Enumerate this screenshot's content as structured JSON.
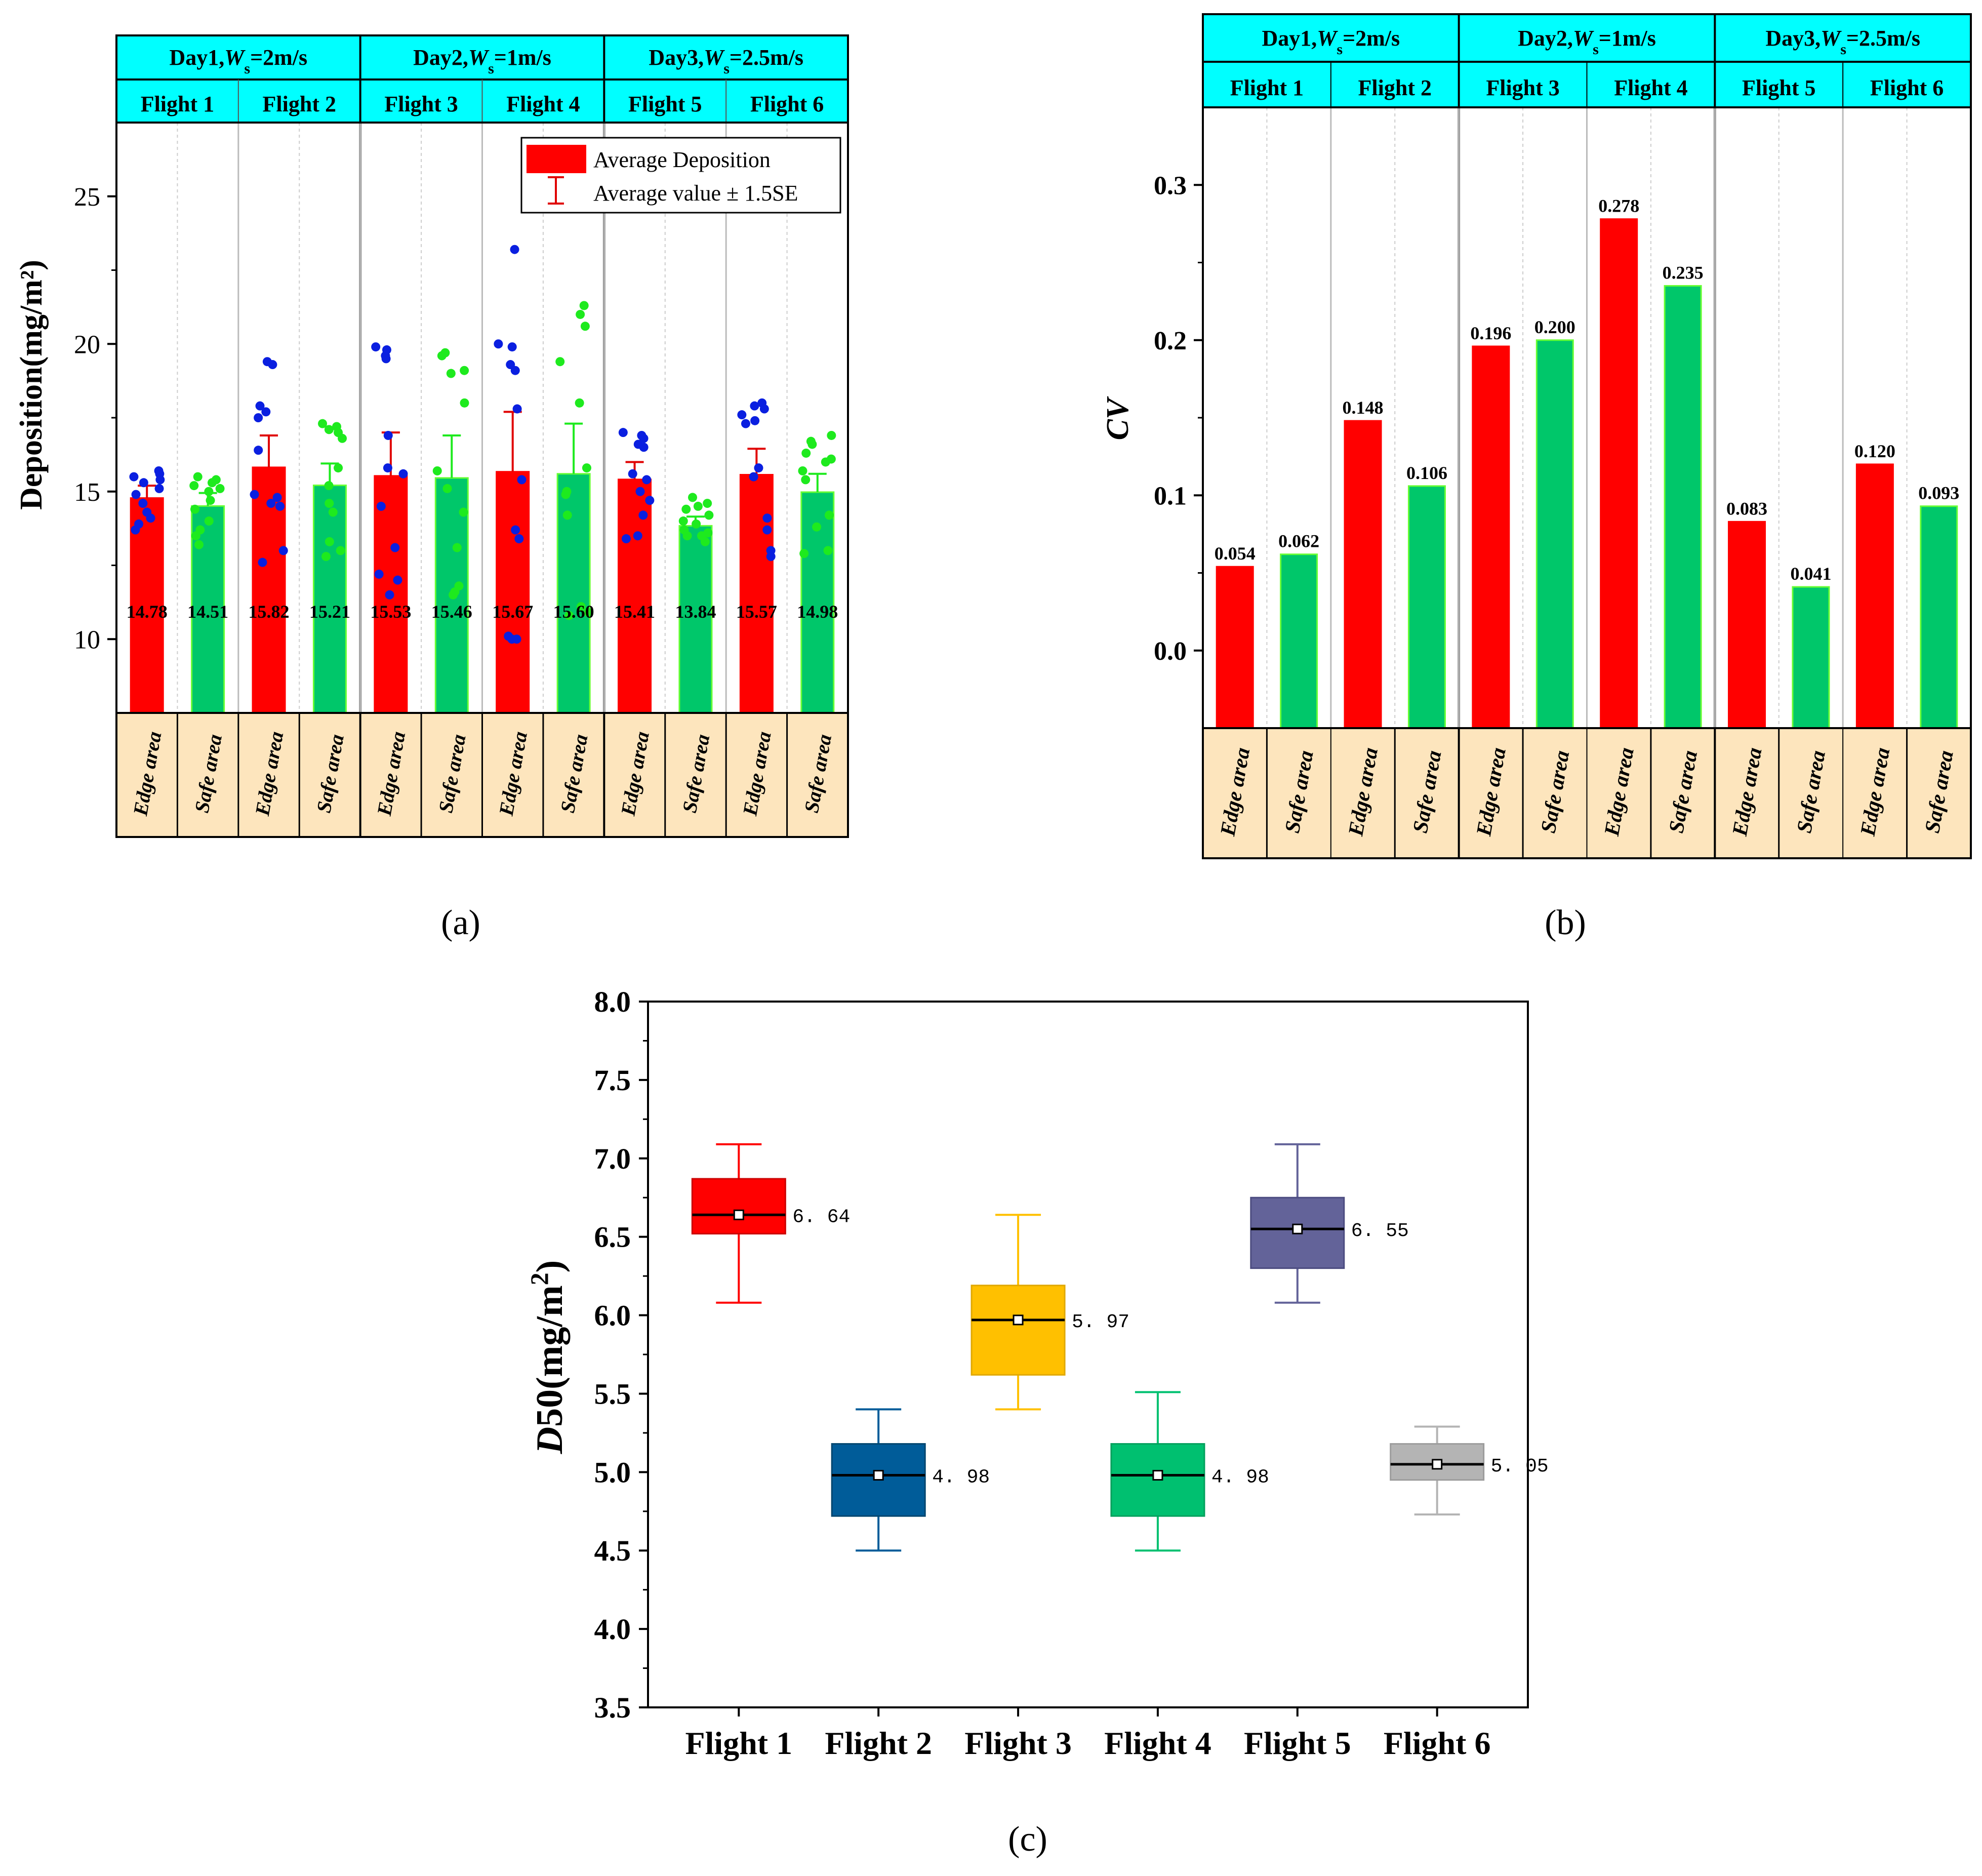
{
  "colors": {
    "header": "#00ffff",
    "footer": "#fde5bd",
    "edge": "#ff0000",
    "safe": "#00c76a",
    "safe_border": "#66ff33",
    "dots_edge": "#0a1fe0",
    "dots_safe": "#1eea1e"
  },
  "chart_data": [
    {
      "id": "a",
      "type": "bar",
      "panel_label": "(a)",
      "ylabel": "Deposition(mg/m²)",
      "ylim": [
        7.5,
        27.5
      ],
      "yticks": [
        10,
        15,
        20,
        25
      ],
      "ytick_labels": [
        "10",
        "15",
        "20",
        "25"
      ],
      "legend": {
        "bar": "Average Deposition",
        "err": "Average value ± 1.5SE",
        "position": "top-right"
      },
      "header_days": [
        "Day1,Ws=2m/s",
        "Day2,Ws=1m/s",
        "Day3,Ws=2.5m/s"
      ],
      "header_flights": [
        "Flight 1",
        "Flight 2",
        "Flight 3",
        "Flight 4",
        "Flight 5",
        "Flight 6"
      ],
      "areas": [
        "Edge area",
        "Safe area",
        "Edge area",
        "Safe area",
        "Edge area",
        "Safe area",
        "Edge area",
        "Safe area",
        "Edge area",
        "Safe area",
        "Edge area",
        "Safe area"
      ],
      "values": [
        14.78,
        14.51,
        15.82,
        15.21,
        15.53,
        15.46,
        15.67,
        15.6,
        15.41,
        13.84,
        15.57,
        14.98
      ],
      "value_labels": [
        "14.78",
        "14.51",
        "15.82",
        "15.21",
        "15.53",
        "15.46",
        "15.67",
        "15.60",
        "15.41",
        "13.84",
        "15.57",
        "14.98"
      ],
      "err_upper": [
        15.2,
        14.95,
        16.9,
        15.95,
        17.0,
        16.9,
        17.7,
        17.3,
        16.0,
        14.15,
        16.45,
        15.6
      ],
      "points": [
        [
          15.7,
          15.6,
          15.5,
          15.3,
          15.1,
          14.9,
          14.6,
          14.3,
          14.1,
          13.9,
          13.7,
          15.4
        ],
        [
          15.5,
          15.4,
          15.3,
          15.1,
          15.0,
          14.7,
          14.4,
          14.0,
          13.7,
          13.5,
          13.2,
          15.2
        ],
        [
          19.4,
          19.3,
          17.9,
          17.7,
          16.4,
          14.9,
          14.8,
          14.6,
          14.5,
          13.0,
          12.6,
          17.5
        ],
        [
          17.2,
          17.1,
          17.0,
          16.8,
          15.8,
          15.2,
          14.6,
          14.3,
          13.3,
          13.0,
          12.8,
          17.3
        ],
        [
          19.9,
          19.6,
          19.5,
          16.9,
          15.8,
          15.6,
          14.5,
          13.1,
          12.2,
          12.0,
          11.5,
          19.8
        ],
        [
          19.7,
          19.6,
          19.1,
          18.0,
          15.7,
          15.1,
          14.3,
          13.1,
          11.8,
          11.6,
          11.5,
          19.0
        ],
        [
          23.2,
          20.0,
          19.9,
          19.3,
          17.8,
          15.4,
          13.7,
          13.4,
          10.1,
          10.0,
          10.0,
          19.1
        ],
        [
          21.3,
          20.6,
          19.4,
          15.8,
          15.0,
          14.9,
          14.2,
          11.1,
          10.9,
          10.8,
          21.0,
          18.0
        ],
        [
          17.0,
          16.9,
          16.6,
          15.6,
          15.4,
          15.0,
          14.7,
          14.2,
          13.5,
          13.4,
          16.5,
          16.8
        ],
        [
          14.8,
          14.5,
          14.4,
          14.2,
          13.9,
          13.7,
          13.5,
          13.3,
          13.5,
          14.0,
          14.6,
          13.6
        ],
        [
          18.0,
          17.9,
          17.8,
          17.4,
          17.3,
          15.8,
          15.5,
          14.1,
          13.7,
          13.0,
          12.8,
          17.6
        ],
        [
          16.9,
          16.7,
          16.6,
          16.1,
          16.0,
          15.7,
          15.4,
          14.2,
          13.8,
          13.0,
          12.9,
          16.3
        ]
      ]
    },
    {
      "id": "b",
      "type": "bar",
      "panel_label": "(b)",
      "ylabel": "CV",
      "ylim": [
        -0.05,
        0.35
      ],
      "yticks": [
        0.0,
        0.1,
        0.2,
        0.3
      ],
      "ytick_labels": [
        "0.0",
        "0.1",
        "0.2",
        "0.3"
      ],
      "header_days": [
        "Day1,Ws=2m/s",
        "Day2,Ws=1m/s",
        "Day3,Ws=2.5m/s"
      ],
      "header_flights": [
        "Flight 1",
        "Flight 2",
        "Flight 3",
        "Flight 4",
        "Flight 5",
        "Flight 6"
      ],
      "areas": [
        "Edge area",
        "Safe area",
        "Edge area",
        "Safe area",
        "Edge area",
        "Safe area",
        "Edge area",
        "Safe area",
        "Edge area",
        "Safe area",
        "Edge area",
        "Safe area"
      ],
      "values": [
        0.054,
        0.062,
        0.148,
        0.106,
        0.196,
        0.2,
        0.278,
        0.235,
        0.083,
        0.041,
        0.12,
        0.093
      ],
      "value_labels": [
        "0.054",
        "0.062",
        "0.148",
        "0.106",
        "0.196",
        "0.200",
        "0.278",
        "0.235",
        "0.083",
        "0.041",
        "0.120",
        "0.093"
      ]
    },
    {
      "id": "c",
      "type": "box",
      "panel_label": "(c)",
      "ylabel": "D50(mg/m²)",
      "ylim": [
        3.5,
        8.0
      ],
      "yticks": [
        3.5,
        4.0,
        4.5,
        5.0,
        5.5,
        6.0,
        6.5,
        7.0,
        7.5,
        8.0
      ],
      "ytick_labels": [
        "3.5",
        "4.0",
        "4.5",
        "5.0",
        "5.5",
        "6.0",
        "6.5",
        "7.0",
        "7.5",
        "8.0"
      ],
      "categories": [
        "Flight 1",
        "Flight 2",
        "Flight 3",
        "Flight 4",
        "Flight 5",
        "Flight 6"
      ],
      "boxes": [
        {
          "min": 6.08,
          "q1": 6.52,
          "median": 6.64,
          "q3": 6.87,
          "max": 7.09,
          "mean": 6.64,
          "label": "6. 64",
          "color": "#ff0000",
          "dark": "#cc0000"
        },
        {
          "min": 4.5,
          "q1": 4.72,
          "median": 4.98,
          "q3": 5.18,
          "max": 5.4,
          "mean": 4.98,
          "label": "4. 98",
          "color": "#005c99",
          "dark": "#00466f"
        },
        {
          "min": 5.4,
          "q1": 5.62,
          "median": 5.97,
          "q3": 6.19,
          "max": 6.64,
          "mean": 5.97,
          "label": "5. 97",
          "color": "#ffc000",
          "dark": "#e0a800"
        },
        {
          "min": 4.5,
          "q1": 4.72,
          "median": 4.98,
          "q3": 5.18,
          "max": 5.51,
          "mean": 4.98,
          "label": "4. 98",
          "color": "#00c070",
          "dark": "#00a05c"
        },
        {
          "min": 6.08,
          "q1": 6.3,
          "median": 6.55,
          "q3": 6.75,
          "max": 7.09,
          "mean": 6.55,
          "label": "6. 55",
          "color": "#636399",
          "dark": "#4c4c80"
        },
        {
          "min": 4.73,
          "q1": 4.95,
          "median": 5.05,
          "q3": 5.18,
          "max": 5.29,
          "mean": 5.05,
          "label": "5. 05",
          "color": "#b4b4b4",
          "dark": "#9c9c9c"
        }
      ]
    }
  ]
}
